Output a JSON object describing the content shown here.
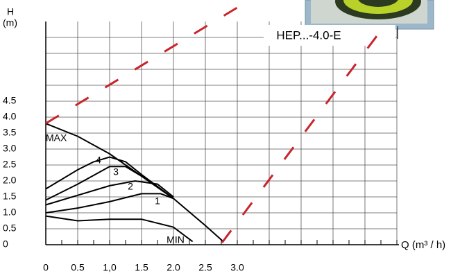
{
  "chart_data": {
    "type": "line",
    "title": "HEP...-4.0-E",
    "y_label": "H\n(m)",
    "x_label": "Q (m³ / h)",
    "xlim": [
      0,
      5.5
    ],
    "ylim": [
      0,
      7.0
    ],
    "xticks": [
      0,
      0.5,
      {
        "value": 1.0,
        "label": "1,0"
      },
      1.5,
      {
        "value": 2.0,
        "label": "2.0"
      },
      2.5,
      {
        "value": 3.0,
        "label": "3.0"
      }
    ],
    "yticks": [
      0,
      0.5,
      {
        "value": 1.0,
        "label": "1.0"
      },
      1.5,
      {
        "value": 2.0,
        "label": "2.0"
      },
      2.5,
      {
        "value": 3.0,
        "label": "3.0"
      },
      3.5,
      {
        "value": 4.0,
        "label": "4.0"
      },
      4.5
    ],
    "grid": true,
    "series": [
      {
        "name": "MAX",
        "color": "#000000",
        "x": [
          0,
          0.5,
          1.0,
          1.5,
          2.0,
          2.5,
          2.78
        ],
        "values": [
          3.8,
          3.4,
          2.85,
          2.15,
          1.45,
          0.6,
          0.1
        ]
      },
      {
        "name": "4",
        "color": "#000000",
        "x": [
          0,
          0.5,
          0.75,
          1.0,
          1.25,
          1.5,
          2.0
        ],
        "values": [
          1.75,
          2.35,
          2.6,
          2.75,
          2.6,
          2.2,
          1.45
        ]
      },
      {
        "name": "3",
        "color": "#000000",
        "x": [
          0,
          0.5,
          1.0,
          1.25,
          1.5,
          2.0
        ],
        "values": [
          1.4,
          1.9,
          2.45,
          2.45,
          2.15,
          1.45
        ]
      },
      {
        "name": "2",
        "color": "#000000",
        "x": [
          0,
          0.5,
          1.0,
          1.4,
          1.75,
          2.0
        ],
        "values": [
          1.25,
          1.55,
          1.85,
          2.0,
          1.9,
          1.5
        ]
      },
      {
        "name": "1",
        "color": "#000000",
        "x": [
          0,
          0.5,
          1.0,
          1.5,
          1.8,
          2.0
        ],
        "values": [
          1.0,
          1.15,
          1.35,
          1.6,
          1.6,
          1.45
        ]
      },
      {
        "name": "MIN",
        "color": "#000000",
        "x": [
          0,
          0.5,
          1.0,
          1.5,
          2.0,
          2.3
        ],
        "values": [
          0.9,
          0.75,
          0.8,
          0.8,
          0.55,
          0.1
        ]
      }
    ]
  }
}
